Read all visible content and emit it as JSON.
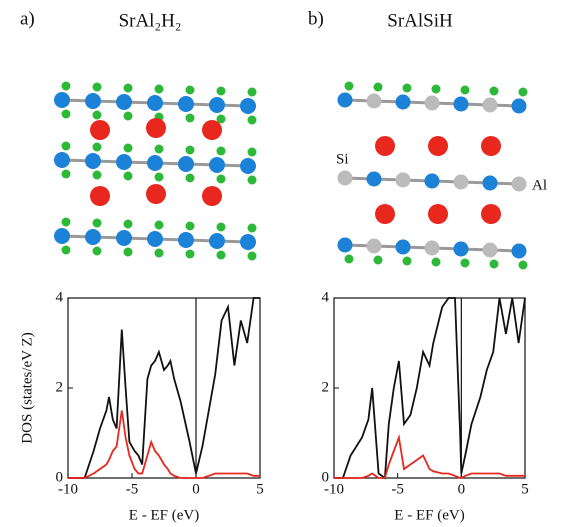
{
  "chart_data": [
    {
      "type": "line",
      "panel_label": "a)",
      "title": "SrAl₂H₂",
      "ylabel": "DOS (states/eV Z)",
      "xlabel": "E - EF (eV)",
      "xlim": [
        -10,
        5
      ],
      "ylim": [
        0,
        4
      ],
      "xticks": [
        -10,
        -5,
        0,
        5
      ],
      "yticks": [
        0,
        2,
        4
      ],
      "grid": false,
      "vline": 0,
      "x": [
        -10,
        -9,
        -8.7,
        -8,
        -7.5,
        -7,
        -6.8,
        -6.5,
        -6.2,
        -5.8,
        -5.5,
        -5.2,
        -4.8,
        -4.5,
        -4.2,
        -3.8,
        -3.5,
        -3.2,
        -2.9,
        -2.5,
        -2.2,
        -2,
        -1.7,
        -1.2,
        -0.5,
        0,
        0.5,
        1,
        1.5,
        2,
        2.5,
        3,
        3.5,
        4,
        4.5,
        5
      ],
      "series": [
        {
          "color": "#111111",
          "values": [
            0,
            0,
            0,
            0.6,
            1.1,
            1.5,
            1.8,
            1.3,
            1.1,
            3.3,
            2.0,
            0.8,
            0.6,
            0.5,
            0.3,
            2.2,
            2.5,
            2.6,
            2.8,
            2.4,
            2.5,
            2.6,
            2.2,
            1.7,
            0.8,
            0.1,
            0.7,
            1.5,
            2.3,
            3.5,
            3.8,
            2.5,
            3.5,
            3,
            4,
            4
          ]
        },
        {
          "color": "#e8281e",
          "values": [
            0,
            0,
            0,
            0.1,
            0.2,
            0.3,
            0.4,
            0.6,
            0.7,
            1.5,
            0.9,
            0.5,
            0.2,
            0.1,
            0.1,
            0.5,
            0.8,
            0.6,
            0.5,
            0.3,
            0.2,
            0.1,
            0.05,
            0,
            0,
            0,
            0,
            0.05,
            0.1,
            0.1,
            0.1,
            0.1,
            0.1,
            0.1,
            0.05,
            0.05
          ]
        }
      ]
    },
    {
      "type": "line",
      "panel_label": "b)",
      "title": "SrAlSiH",
      "xlabel": "E - EF (eV)",
      "annotations": [
        "Si",
        "Al"
      ],
      "xlim": [
        -10,
        5
      ],
      "ylim": [
        0,
        4
      ],
      "xticks": [
        -10,
        -5,
        0,
        5
      ],
      "yticks": [
        0,
        2,
        4
      ],
      "grid": false,
      "vline": 0,
      "x": [
        -10,
        -9.3,
        -8.7,
        -7.8,
        -7.3,
        -7,
        -6.5,
        -6,
        -5.7,
        -5.3,
        -4.9,
        -4.5,
        -4,
        -3.5,
        -3,
        -2.5,
        -2.2,
        -1.5,
        -1,
        -0.5,
        -0.1,
        0,
        0.3,
        0.8,
        1.5,
        2,
        2.5,
        3,
        3.5,
        4,
        4.5,
        5
      ],
      "series": [
        {
          "color": "#111111",
          "values": [
            0,
            0,
            0.5,
            0.9,
            1.3,
            2.0,
            0.1,
            0,
            1.2,
            2.0,
            2.6,
            1.2,
            1.4,
            2.0,
            2.8,
            2.5,
            3.0,
            3.8,
            4,
            4,
            1.0,
            0.1,
            0.5,
            1.2,
            1.8,
            2.4,
            2.8,
            4,
            3.2,
            4,
            3,
            4
          ]
        },
        {
          "color": "#e8281e",
          "values": [
            0,
            0,
            0,
            0,
            0.05,
            0.1,
            0,
            0,
            0.3,
            0.6,
            0.9,
            0.2,
            0.3,
            0.4,
            0.5,
            0.2,
            0.15,
            0.1,
            0.1,
            0.05,
            0,
            0,
            0.05,
            0.1,
            0.1,
            0.1,
            0.1,
            0.1,
            0.05,
            0.05,
            0.05,
            0.05
          ]
        }
      ]
    }
  ]
}
